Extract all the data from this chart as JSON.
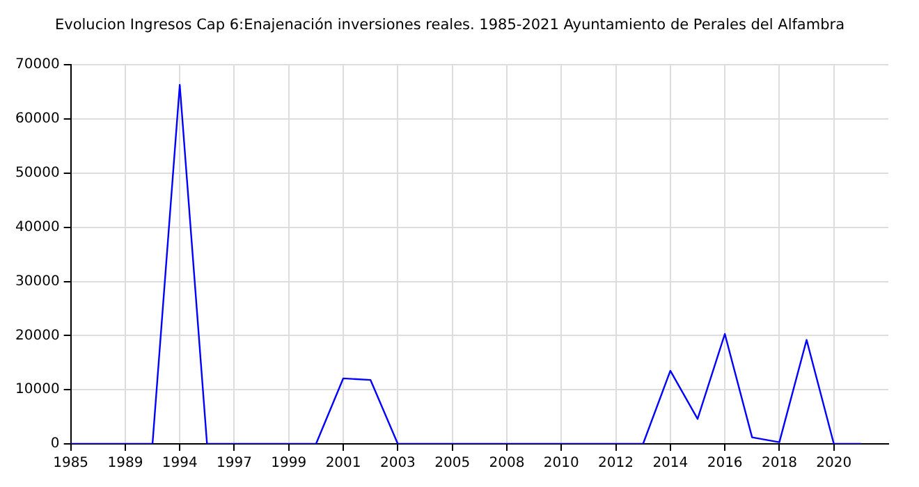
{
  "chart_data": {
    "type": "line",
    "title": "Evolucion Ingresos Cap 6:Enajenación inversiones reales. 1985-2021 Ayuntamiento de Perales del Alfambra",
    "categories": [
      "1985",
      null,
      "1989",
      null,
      "1994",
      null,
      "1997",
      null,
      "1999",
      null,
      "2001",
      null,
      "2003",
      null,
      "2005",
      null,
      "2008",
      null,
      "2010",
      null,
      "2012",
      null,
      "2014",
      null,
      "2016",
      null,
      "2018",
      null,
      "2020",
      null,
      null
    ],
    "series": [
      {
        "color": "#0000ff",
        "values": [
          0,
          0,
          0,
          0,
          66300,
          0,
          0,
          0,
          0,
          0,
          12100,
          11800,
          0,
          0,
          0,
          0,
          0,
          0,
          0,
          0,
          0,
          0,
          13500,
          4600,
          20300,
          1200,
          300,
          19200,
          0,
          0,
          null
        ]
      }
    ],
    "ylim": [
      0,
      70000
    ],
    "yticks": [
      0,
      10000,
      20000,
      30000,
      40000,
      50000,
      60000,
      70000
    ],
    "grid": true,
    "marker": "none",
    "line_style": "solid"
  }
}
